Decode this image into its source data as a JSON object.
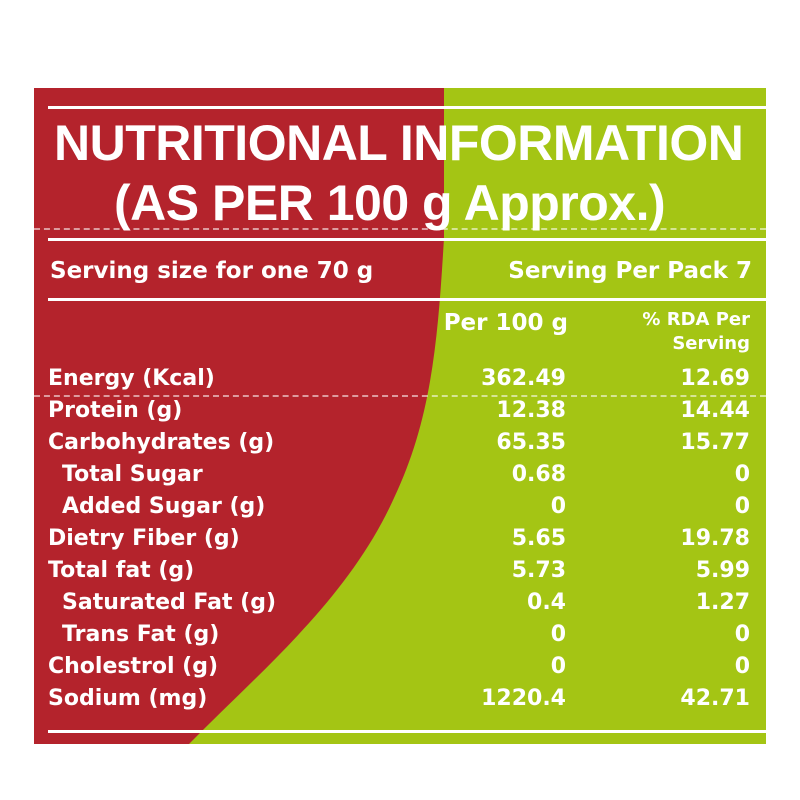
{
  "colors": {
    "red": "#b4232c",
    "green": "#a4c514",
    "text": "#ffffff"
  },
  "title": {
    "line1": "NUTRITIONAL INFORMATION",
    "line2": "(AS PER 100 g Approx.)"
  },
  "serving": {
    "size": "Serving size for one 70 g",
    "per_pack": "Serving Per Pack 7"
  },
  "columns": {
    "per100": "Per 100 g",
    "rda_line1": "% RDA Per",
    "rda_line2": "Serving"
  },
  "rows": [
    {
      "label": "Energy (Kcal)",
      "per100": "362.49",
      "rda": "12.69",
      "indent": false
    },
    {
      "label": "Protein (g)",
      "per100": "12.38",
      "rda": "14.44",
      "indent": false
    },
    {
      "label": "Carbohydrates (g)",
      "per100": "65.35",
      "rda": "15.77",
      "indent": false
    },
    {
      "label": "Total Sugar",
      "per100": "0.68",
      "rda": "0",
      "indent": true
    },
    {
      "label": "Added Sugar (g)",
      "per100": "0",
      "rda": "0",
      "indent": true
    },
    {
      "label": "Dietry Fiber (g)",
      "per100": "5.65",
      "rda": "19.78",
      "indent": false
    },
    {
      "label": "Total fat (g)",
      "per100": "5.73",
      "rda": "5.99",
      "indent": false
    },
    {
      "label": "Saturated Fat (g)",
      "per100": "0.4",
      "rda": "1.27",
      "indent": true
    },
    {
      "label": "Trans Fat (g)",
      "per100": "0",
      "rda": "0",
      "indent": true
    },
    {
      "label": "Cholestrol (g)",
      "per100": "0",
      "rda": "0",
      "indent": false
    },
    {
      "label": "Sodium (mg)",
      "per100": "1220.4",
      "rda": "42.71",
      "indent": false
    }
  ]
}
